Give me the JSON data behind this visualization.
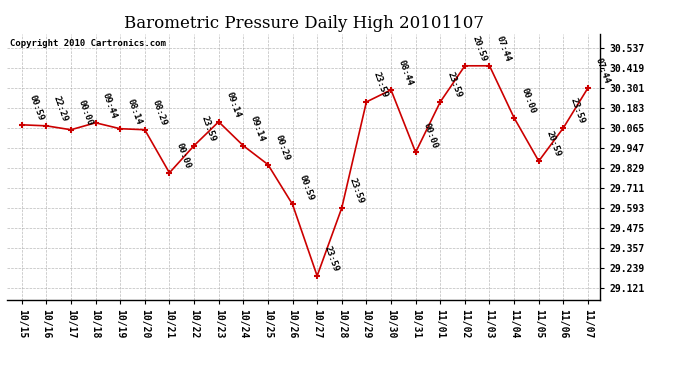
{
  "title": "Barometric Pressure Daily High 20101107",
  "copyright": "Copyright 2010 Cartronics.com",
  "x_labels": [
    "10/15",
    "10/16",
    "10/17",
    "10/18",
    "10/19",
    "10/20",
    "10/21",
    "10/22",
    "10/23",
    "10/24",
    "10/25",
    "10/26",
    "10/27",
    "10/28",
    "10/29",
    "10/30",
    "10/31",
    "11/01",
    "11/02",
    "11/03",
    "11/04",
    "11/05",
    "11/06",
    "11/07"
  ],
  "y_values": [
    30.083,
    30.077,
    30.054,
    30.095,
    30.06,
    30.054,
    29.8,
    29.96,
    30.101,
    29.96,
    29.849,
    29.614,
    29.192,
    29.593,
    30.218,
    30.289,
    29.921,
    30.218,
    30.431,
    30.431,
    30.124,
    29.869,
    30.065,
    30.301
  ],
  "time_labels": [
    "00:59",
    "22:29",
    "00:00",
    "09:44",
    "08:14",
    "08:29",
    "00:00",
    "23:59",
    "09:14",
    "09:14",
    "00:29",
    "00:59",
    "23:59",
    "23:59",
    "23:59",
    "08:44",
    "00:00",
    "23:59",
    "20:59",
    "07:44",
    "00:00",
    "20:59",
    "23:59",
    "07:44"
  ],
  "y_ticks": [
    29.121,
    29.239,
    29.357,
    29.475,
    29.593,
    29.711,
    29.829,
    29.947,
    30.065,
    30.183,
    30.301,
    30.419,
    30.537
  ],
  "ylim": [
    29.05,
    30.62
  ],
  "xlim": [
    -0.6,
    23.5
  ],
  "line_color": "#cc0000",
  "marker_color": "#cc0000",
  "bg_color": "#ffffff",
  "grid_color": "#aaaaaa",
  "title_fontsize": 12,
  "annot_fontsize": 6.5,
  "tick_fontsize": 7,
  "copyright_fontsize": 6.5
}
